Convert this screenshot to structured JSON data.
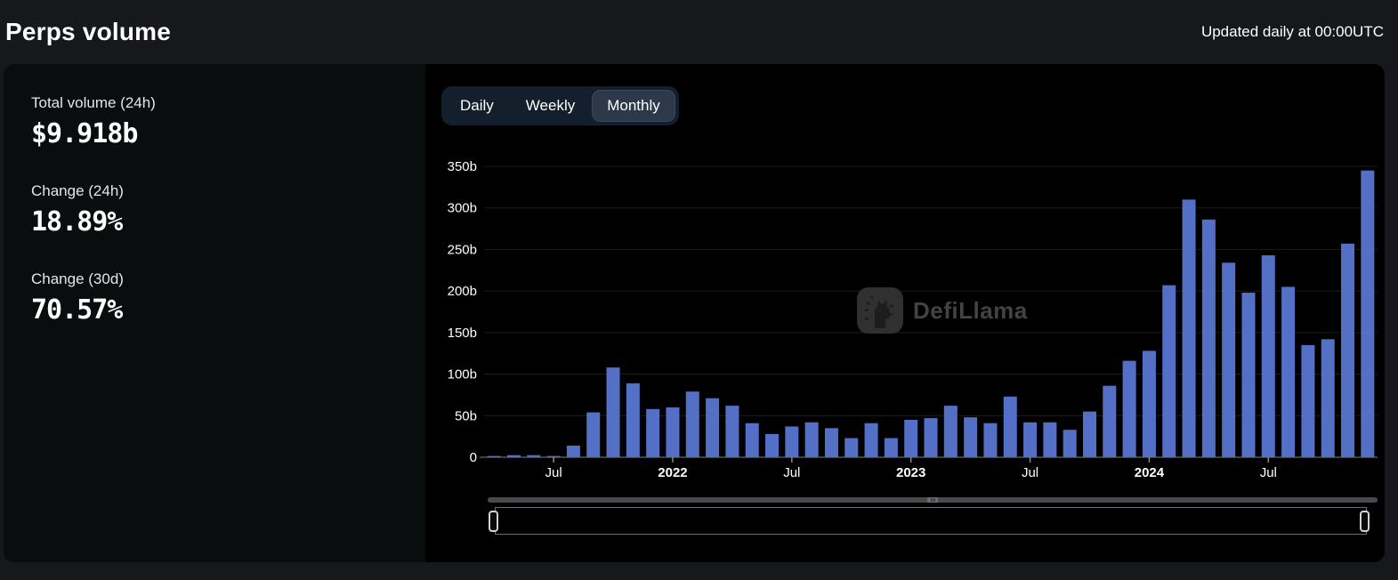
{
  "header": {
    "title": "Perps volume",
    "updated_text": "Updated daily at 00:00UTC"
  },
  "stats": [
    {
      "label": "Total volume (24h)",
      "value": "$9.918b"
    },
    {
      "label": "Change (24h)",
      "value": "18.89%"
    },
    {
      "label": "Change (30d)",
      "value": "70.57%"
    }
  ],
  "tabs": {
    "items": [
      "Daily",
      "Weekly",
      "Monthly"
    ],
    "selected": "Monthly"
  },
  "watermark": {
    "text": "DefiLlama",
    "icon": "defillama-llama-logo"
  },
  "icons": {
    "watermark_logo": "defillama-llama-logo",
    "zoom_grip": "drag-grip-icon",
    "zoom_left_handle": "slider-handle-icon",
    "zoom_right_handle": "slider-handle-icon"
  },
  "colors": {
    "bar": "#5470c6",
    "chart_bg": "#000000",
    "panel_bg": "#0a0d0d",
    "page_bg": "#17181c",
    "tab_container": "#141f2d",
    "tab_selected": "#2b3949",
    "gridline": "#1d1d20",
    "axis_line": "#55565a",
    "watermark_text": "#474747"
  },
  "chart_data": {
    "type": "bar",
    "title": "Perps volume (monthly)",
    "unit": "billion USD",
    "grid": true,
    "legend": "none",
    "ylim": [
      0,
      350
    ],
    "yticks": [
      {
        "value": 0,
        "label": "0"
      },
      {
        "value": 50,
        "label": "50b"
      },
      {
        "value": 100,
        "label": "100b"
      },
      {
        "value": 150,
        "label": "150b"
      },
      {
        "value": 200,
        "label": "200b"
      },
      {
        "value": 250,
        "label": "250b"
      },
      {
        "value": 300,
        "label": "300b"
      },
      {
        "value": 350,
        "label": "350b"
      }
    ],
    "x": [
      "2021-04",
      "2021-05",
      "2021-06",
      "2021-07",
      "2021-08",
      "2021-09",
      "2021-10",
      "2021-11",
      "2021-12",
      "2022-01",
      "2022-02",
      "2022-03",
      "2022-04",
      "2022-05",
      "2022-06",
      "2022-07",
      "2022-08",
      "2022-09",
      "2022-10",
      "2022-11",
      "2022-12",
      "2023-01",
      "2023-02",
      "2023-03",
      "2023-04",
      "2023-05",
      "2023-06",
      "2023-07",
      "2023-08",
      "2023-09",
      "2023-10",
      "2023-11",
      "2023-12",
      "2024-01",
      "2024-02",
      "2024-03",
      "2024-04",
      "2024-05",
      "2024-06",
      "2024-07",
      "2024-08",
      "2024-09",
      "2024-10",
      "2024-11",
      "2024-12"
    ],
    "values": [
      1.5,
      2.5,
      2.5,
      1.5,
      14,
      54,
      108,
      89,
      58,
      60,
      79,
      71,
      62,
      41,
      28,
      37,
      42,
      35,
      23,
      41,
      23,
      45,
      47,
      62,
      48,
      41,
      73,
      42,
      42,
      33,
      55,
      86,
      116,
      128,
      207,
      310,
      286,
      234,
      198,
      243,
      205,
      135,
      142,
      257,
      345
    ],
    "x_axis_ticks": [
      {
        "index": 3,
        "label": "Jul",
        "bold": false
      },
      {
        "index": 9,
        "label": "2022",
        "bold": true
      },
      {
        "index": 15,
        "label": "Jul",
        "bold": false
      },
      {
        "index": 21,
        "label": "2023",
        "bold": true
      },
      {
        "index": 27,
        "label": "Jul",
        "bold": false
      },
      {
        "index": 33,
        "label": "2024",
        "bold": true
      },
      {
        "index": 39,
        "label": "Jul",
        "bold": false
      }
    ]
  }
}
